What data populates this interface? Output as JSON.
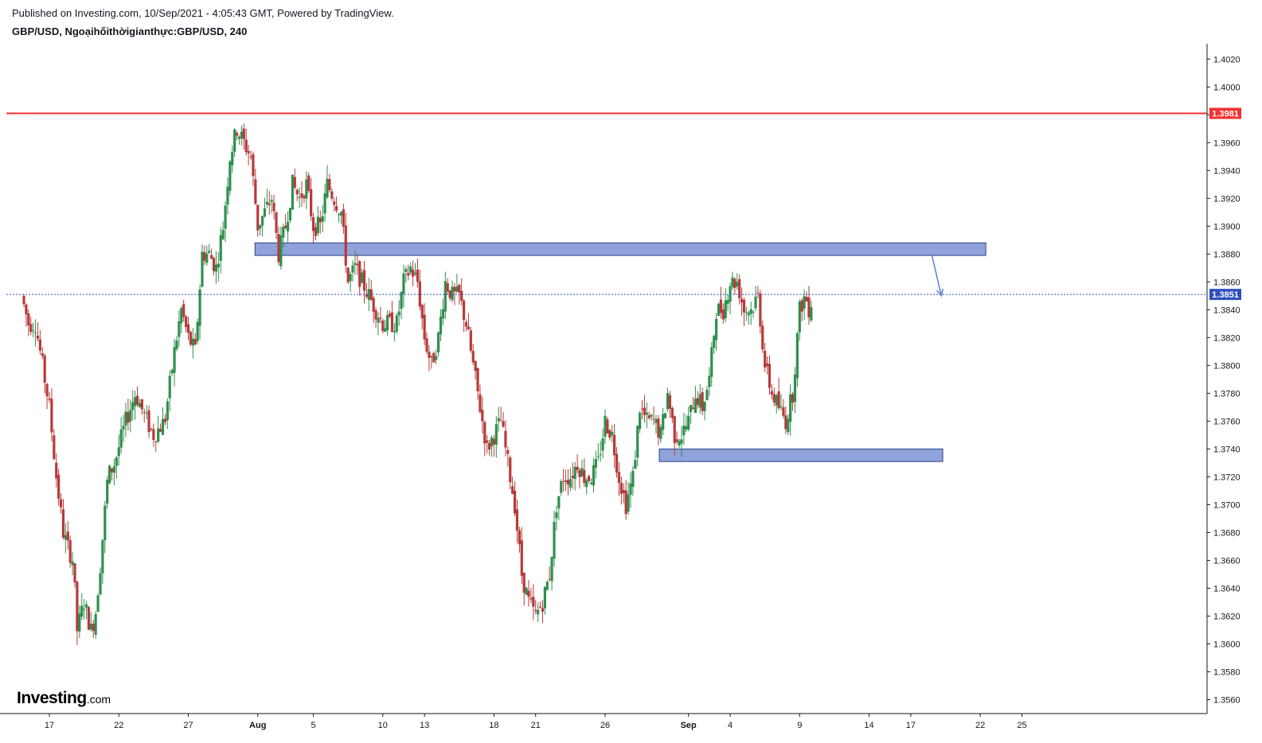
{
  "header": {
    "published": "Published on Investing.com, 10/Sep/2021 - 4:05:43 GMT, Powered by TradingView.",
    "symbol": "GBP/USD, Ngoạihốithờigianthực:GBP/USD, 240"
  },
  "logo": {
    "main": "Investing",
    "suffix": ".com"
  },
  "colors": {
    "up": "#2f8f4e",
    "down": "#b73a3a",
    "resistance": "#f23030",
    "zone_fill": "#7b93d3",
    "zone_stroke": "#2a3f8f",
    "price_line": "#2f4fbf",
    "arrow": "#5b80c8"
  },
  "chart_data": {
    "type": "candlestick",
    "title": "GBP/USD, Ngoạihốithờigianthực:GBP/USD, 240",
    "y_axis": {
      "ylim": [
        1.355,
        1.4031
      ],
      "ticks": [
        "1.4020",
        "1.4000",
        "1.3980",
        "1.3960",
        "1.3940",
        "1.3920",
        "1.3900",
        "1.3880",
        "1.3860",
        "1.3840",
        "1.3820",
        "1.3800",
        "1.3780",
        "1.3760",
        "1.3740",
        "1.3720",
        "1.3700",
        "1.3680",
        "1.3660",
        "1.3640",
        "1.3620",
        "1.3600",
        "1.3580",
        "1.3560"
      ],
      "tick_values": [
        1.402,
        1.4,
        1.398,
        1.396,
        1.394,
        1.392,
        1.39,
        1.388,
        1.386,
        1.384,
        1.382,
        1.38,
        1.378,
        1.376,
        1.374,
        1.372,
        1.37,
        1.368,
        1.366,
        1.364,
        1.362,
        1.36,
        1.358,
        1.356
      ]
    },
    "x_axis": {
      "ticks": [
        {
          "label": "17",
          "day": 17,
          "bold": false
        },
        {
          "label": "22",
          "day": 22,
          "bold": false
        },
        {
          "label": "27",
          "day": 27,
          "bold": false
        },
        {
          "label": "Aug",
          "day": 32,
          "bold": true
        },
        {
          "label": "5",
          "day": 36,
          "bold": false
        },
        {
          "label": "10",
          "day": 41,
          "bold": false
        },
        {
          "label": "13",
          "day": 44,
          "bold": false
        },
        {
          "label": "18",
          "day": 49,
          "bold": false
        },
        {
          "label": "21",
          "day": 52,
          "bold": false
        },
        {
          "label": "26",
          "day": 57,
          "bold": false
        },
        {
          "label": "Sep",
          "day": 63,
          "bold": true
        },
        {
          "label": "4",
          "day": 66,
          "bold": false
        },
        {
          "label": "9",
          "day": 71,
          "bold": false
        },
        {
          "label": "14",
          "day": 76,
          "bold": false
        },
        {
          "label": "17",
          "day": 79,
          "bold": false
        },
        {
          "label": "22",
          "day": 84,
          "bold": false
        },
        {
          "label": "25",
          "day": 87,
          "bold": false
        }
      ]
    },
    "series": [
      {
        "name": "GBP/USD",
        "interval": "240",
        "close_anchors": [
          [
            15.0,
            1.385
          ],
          [
            15.5,
            1.383
          ],
          [
            16.0,
            1.383
          ],
          [
            16.5,
            1.38
          ],
          [
            17.0,
            1.377
          ],
          [
            17.5,
            1.372
          ],
          [
            18.0,
            1.368
          ],
          [
            18.3,
            1.367
          ],
          [
            18.7,
            1.366
          ],
          [
            19.0,
            1.361
          ],
          [
            19.5,
            1.363
          ],
          [
            20.0,
            1.361
          ],
          [
            20.3,
            1.362
          ],
          [
            20.7,
            1.366
          ],
          [
            21.2,
            1.372
          ],
          [
            21.7,
            1.373
          ],
          [
            22.5,
            1.376
          ],
          [
            23.2,
            1.378
          ],
          [
            24.0,
            1.376
          ],
          [
            24.5,
            1.375
          ],
          [
            25.3,
            1.376
          ],
          [
            26.0,
            1.381
          ],
          [
            26.5,
            1.384
          ],
          [
            27.0,
            1.382
          ],
          [
            27.5,
            1.381
          ],
          [
            28.0,
            1.388
          ],
          [
            28.5,
            1.388
          ],
          [
            29.0,
            1.387
          ],
          [
            29.5,
            1.39
          ],
          [
            30.0,
            1.395
          ],
          [
            30.5,
            1.397
          ],
          [
            31.0,
            1.396
          ],
          [
            31.5,
            1.395
          ],
          [
            32.0,
            1.39
          ],
          [
            32.5,
            1.391
          ],
          [
            33.0,
            1.392
          ],
          [
            33.5,
            1.388
          ],
          [
            34.0,
            1.39
          ],
          [
            34.5,
            1.393
          ],
          [
            35.0,
            1.392
          ],
          [
            35.5,
            1.393
          ],
          [
            36.0,
            1.39
          ],
          [
            36.5,
            1.39
          ],
          [
            37.0,
            1.393
          ],
          [
            37.5,
            1.392
          ],
          [
            38.0,
            1.391
          ],
          [
            38.5,
            1.386
          ],
          [
            39.0,
            1.387
          ],
          [
            39.5,
            1.386
          ],
          [
            40.0,
            1.385
          ],
          [
            40.5,
            1.384
          ],
          [
            41.0,
            1.383
          ],
          [
            41.5,
            1.383
          ],
          [
            42.0,
            1.383
          ],
          [
            42.5,
            1.386
          ],
          [
            43.0,
            1.387
          ],
          [
            43.5,
            1.386
          ],
          [
            44.0,
            1.382
          ],
          [
            44.5,
            1.38
          ],
          [
            45.0,
            1.382
          ],
          [
            45.5,
            1.386
          ],
          [
            46.0,
            1.385
          ],
          [
            46.5,
            1.385
          ],
          [
            47.0,
            1.383
          ],
          [
            47.5,
            1.38
          ],
          [
            48.0,
            1.377
          ],
          [
            48.5,
            1.374
          ],
          [
            49.0,
            1.375
          ],
          [
            49.5,
            1.376
          ],
          [
            50.0,
            1.373
          ],
          [
            50.5,
            1.37
          ],
          [
            51.0,
            1.365
          ],
          [
            51.5,
            1.363
          ],
          [
            52.0,
            1.362
          ],
          [
            52.5,
            1.363
          ],
          [
            53.0,
            1.365
          ],
          [
            53.5,
            1.37
          ],
          [
            54.0,
            1.372
          ],
          [
            54.5,
            1.372
          ],
          [
            55.0,
            1.373
          ],
          [
            55.5,
            1.372
          ],
          [
            56.0,
            1.372
          ],
          [
            56.5,
            1.373
          ],
          [
            57.0,
            1.376
          ],
          [
            57.5,
            1.375
          ],
          [
            58.0,
            1.372
          ],
          [
            58.5,
            1.37
          ],
          [
            59.0,
            1.372
          ],
          [
            59.5,
            1.377
          ],
          [
            60.0,
            1.376
          ],
          [
            60.5,
            1.376
          ],
          [
            61.0,
            1.375
          ],
          [
            61.5,
            1.378
          ],
          [
            62.0,
            1.375
          ],
          [
            62.5,
            1.375
          ],
          [
            63.0,
            1.376
          ],
          [
            63.5,
            1.378
          ],
          [
            64.0,
            1.377
          ],
          [
            64.5,
            1.379
          ],
          [
            65.0,
            1.384
          ],
          [
            65.5,
            1.384
          ],
          [
            66.0,
            1.386
          ],
          [
            66.5,
            1.386
          ],
          [
            67.0,
            1.384
          ],
          [
            67.5,
            1.384
          ],
          [
            68.0,
            1.385
          ],
          [
            68.5,
            1.38
          ],
          [
            69.0,
            1.378
          ],
          [
            69.5,
            1.377
          ],
          [
            70.0,
            1.376
          ],
          [
            70.5,
            1.378
          ],
          [
            71.0,
            1.384
          ],
          [
            71.4,
            1.385
          ],
          [
            71.7,
            1.384
          ],
          [
            71.95,
            1.3851
          ]
        ]
      }
    ],
    "levels": [
      {
        "price": 1.3981,
        "label": "1.3981",
        "style": "red-line"
      },
      {
        "price": 1.3851,
        "label": "1.3851",
        "style": "dotted-current"
      }
    ],
    "zones": [
      {
        "from_day": 31.8,
        "to_day": 84.4,
        "top": 1.3888,
        "bottom": 1.3879
      },
      {
        "from_day": 60.9,
        "to_day": 81.3,
        "top": 1.374,
        "bottom": 1.3731
      }
    ],
    "arrow": {
      "from_day": 80.5,
      "from_price": 1.388,
      "to_day": 81.2,
      "to_price": 1.385
    },
    "grid": false,
    "legend": "none"
  }
}
